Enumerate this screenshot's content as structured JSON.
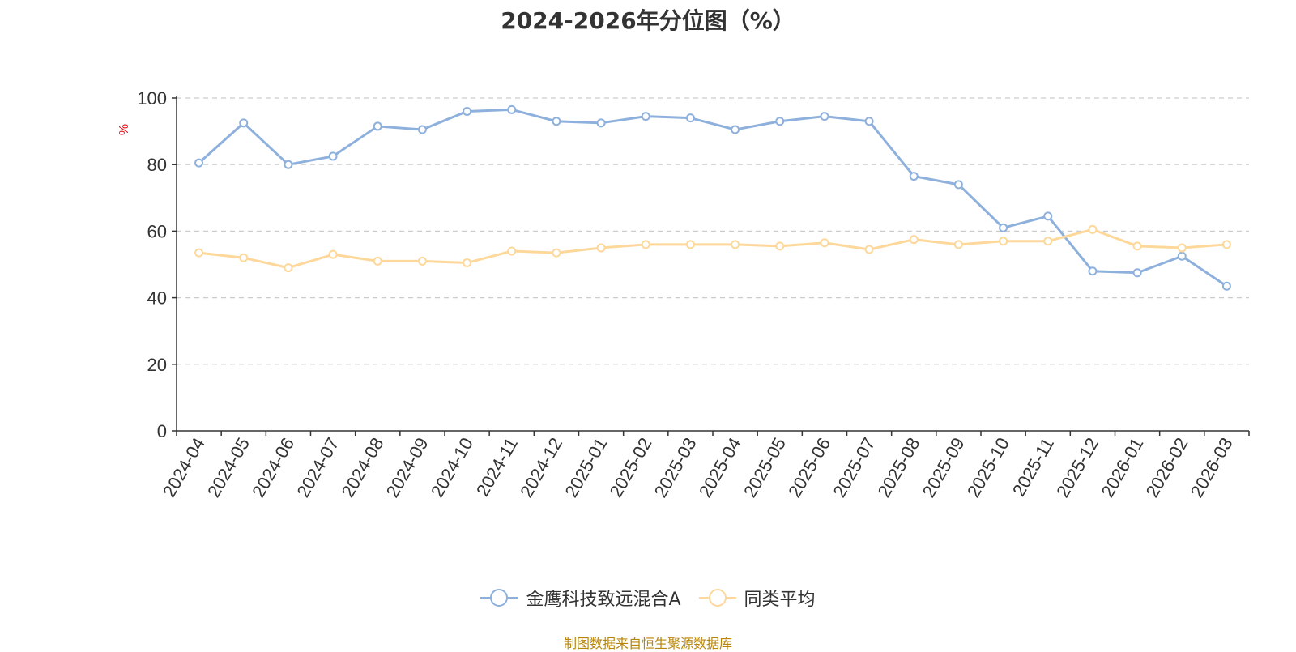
{
  "chart_data": {
    "type": "line",
    "title": "2024-2026年分位图（%）",
    "ylabel": "%",
    "xlabel": "",
    "ylim": [
      0,
      100
    ],
    "yticks": [
      0,
      20,
      40,
      60,
      80,
      100
    ],
    "grid": true,
    "legend_position": "bottom",
    "categories": [
      "2024-04",
      "2024-05",
      "2024-06",
      "2024-07",
      "2024-08",
      "2024-09",
      "2024-10",
      "2024-11",
      "2024-12",
      "2025-01",
      "2025-02",
      "2025-03",
      "2025-04",
      "2025-05",
      "2025-06",
      "2025-07",
      "2025-08",
      "2025-09",
      "2025-10",
      "2025-11",
      "2025-12",
      "2026-01",
      "2026-02",
      "2026-03"
    ],
    "series": [
      {
        "name": "金鹰科技致远混合A",
        "color": "#8eb0dc",
        "values": [
          80.5,
          92.5,
          80,
          82.5,
          91.5,
          90.5,
          96,
          96.5,
          93,
          92.5,
          94.5,
          94,
          90.5,
          93,
          94.5,
          93,
          76.5,
          74,
          61,
          64.5,
          48,
          47.5,
          52.5,
          43.5
        ]
      },
      {
        "name": "同类平均",
        "color": "#fdd89a",
        "values": [
          53.5,
          52,
          49,
          53,
          51,
          51,
          50.5,
          54,
          53.5,
          55,
          56,
          56,
          56,
          55.5,
          56.5,
          54.5,
          57.5,
          56,
          57,
          57,
          60.5,
          55.5,
          55,
          56
        ]
      }
    ]
  },
  "source_text": "制图数据来自恒生聚源数据库"
}
